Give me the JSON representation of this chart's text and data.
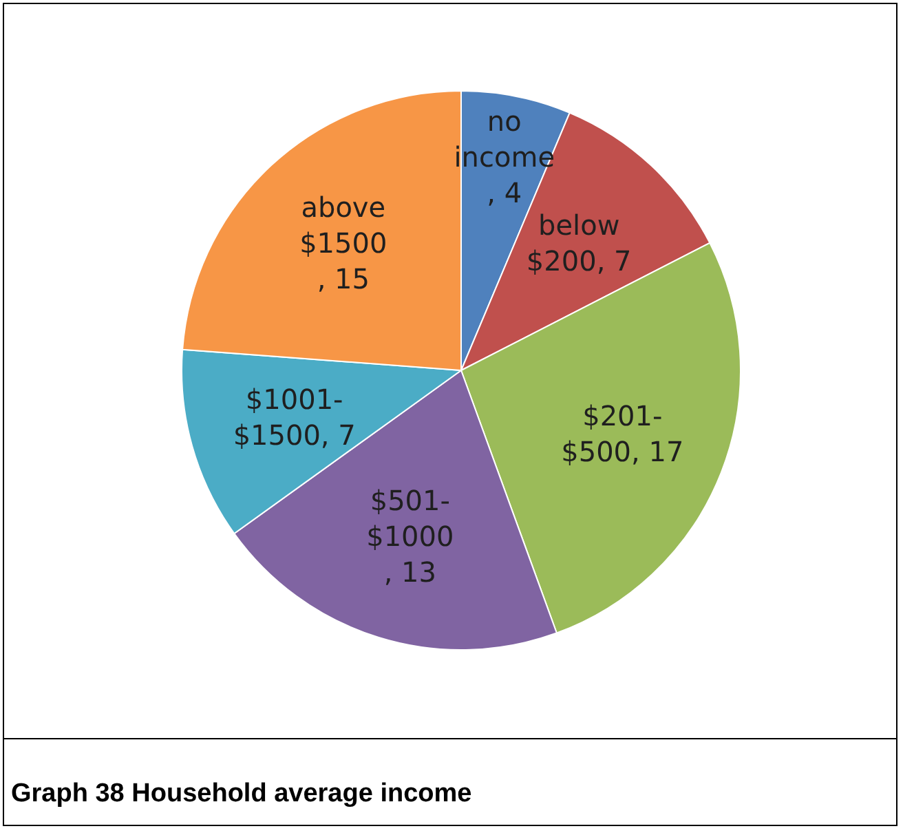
{
  "chart_data": {
    "type": "pie",
    "title": "Graph 38 Household average income",
    "categories": [
      "no income",
      "below $200",
      "$201-$500",
      "$501-$1000",
      "$1001-$1500",
      "above $1500"
    ],
    "values": [
      4,
      7,
      17,
      13,
      7,
      15
    ],
    "value_labels": [
      ", 4",
      ", 7",
      ", 17",
      ", 13",
      ", 7",
      ", 15"
    ],
    "colors": [
      "#4f81bd",
      "#c0504d",
      "#9bbb59",
      "#8064a2",
      "#4bacc6",
      "#f79646"
    ],
    "legend": false
  }
}
